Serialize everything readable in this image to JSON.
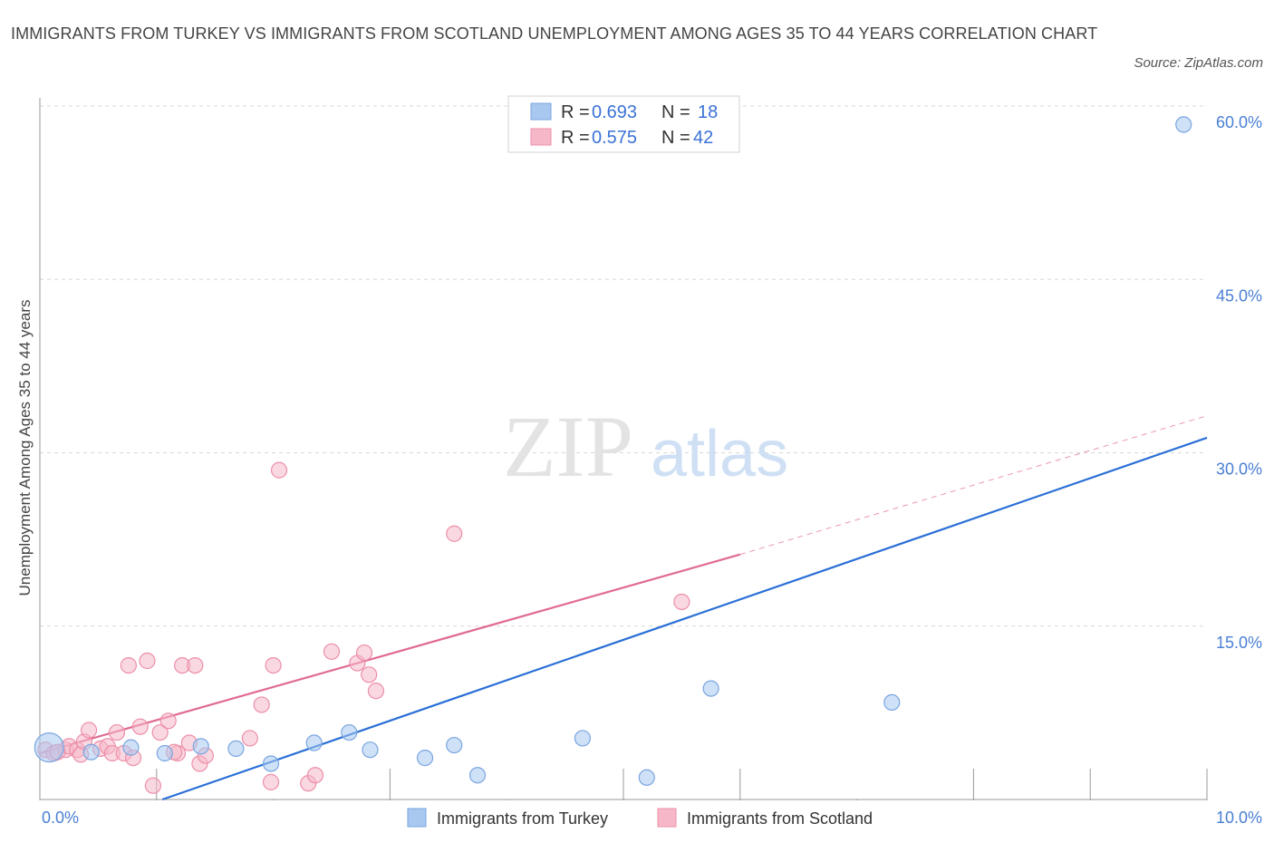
{
  "title": "IMMIGRANTS FROM TURKEY VS IMMIGRANTS FROM SCOTLAND UNEMPLOYMENT AMONG AGES 35 TO 44 YEARS CORRELATION CHART",
  "source": "Source: ZipAtlas.com",
  "watermark": {
    "zip": "ZIP",
    "atlas": "atlas"
  },
  "legend": {
    "turkey": {
      "r_label": "R =",
      "r_value": "0.693",
      "n_label": "N =",
      "n_value": "18"
    },
    "scotland": {
      "r_label": "R =",
      "r_value": "0.575",
      "n_label": "N =",
      "n_value": "42"
    }
  },
  "bottom_legend": {
    "turkey": "Immigrants from Turkey",
    "scotland": "Immigrants from Scotland"
  },
  "chart_data": {
    "type": "scatter",
    "ylabel": "Unemployment Among Ages 35 to 44 years",
    "xlim": [
      0,
      10
    ],
    "ylim": [
      0,
      60
    ],
    "y_ticks": [
      {
        "value": 60,
        "label": "60.0%"
      },
      {
        "value": 45,
        "label": "45.0%"
      },
      {
        "value": 30,
        "label": "30.0%"
      },
      {
        "value": 15,
        "label": "15.0%"
      }
    ],
    "x_tick_labels": {
      "min": "0.0%",
      "max": "10.0%"
    },
    "colors": {
      "turkey_fill": "#a8c8f0",
      "turkey_stroke": "#7aa5e0",
      "turkey_line": "#2a6fd6",
      "scotland_fill": "#f6b8c8",
      "scotland_stroke": "#ec8fa8",
      "scotland_line": "#e06a92",
      "grid": "#d8d8d8",
      "tick_label": "#4a7fd4"
    },
    "series": [
      {
        "name": "Immigrants from Turkey",
        "points": [
          [
            0.08,
            4.5,
            "large"
          ],
          [
            0.44,
            4.1
          ],
          [
            0.78,
            4.5
          ],
          [
            1.07,
            4.0
          ],
          [
            1.38,
            4.6
          ],
          [
            1.68,
            4.4
          ],
          [
            1.98,
            3.1
          ],
          [
            2.35,
            4.9
          ],
          [
            2.65,
            5.8
          ],
          [
            2.83,
            4.3
          ],
          [
            3.3,
            3.6
          ],
          [
            3.55,
            4.7
          ],
          [
            3.75,
            2.1
          ],
          [
            4.65,
            5.3
          ],
          [
            5.2,
            1.9
          ],
          [
            5.75,
            9.6
          ],
          [
            7.3,
            8.4
          ],
          [
            9.8,
            58.4
          ]
        ],
        "trend": {
          "x0": 1.05,
          "y0": 0.0,
          "x1": 10.0,
          "y1": 31.3
        }
      },
      {
        "name": "Immigrants from Scotland",
        "points": [
          [
            0.05,
            4.3
          ],
          [
            0.12,
            4.0
          ],
          [
            0.22,
            4.3
          ],
          [
            0.25,
            4.6
          ],
          [
            0.32,
            4.3
          ],
          [
            0.35,
            3.9
          ],
          [
            0.38,
            5.0
          ],
          [
            0.42,
            6.0
          ],
          [
            0.52,
            4.4
          ],
          [
            0.58,
            4.6
          ],
          [
            0.62,
            4.0
          ],
          [
            0.66,
            5.8
          ],
          [
            0.72,
            4.0
          ],
          [
            0.76,
            11.6
          ],
          [
            0.8,
            3.6
          ],
          [
            0.86,
            6.3
          ],
          [
            0.92,
            12.0
          ],
          [
            0.97,
            1.2
          ],
          [
            1.03,
            5.8
          ],
          [
            1.1,
            6.8
          ],
          [
            1.18,
            4.0
          ],
          [
            1.22,
            11.6
          ],
          [
            1.28,
            4.9
          ],
          [
            1.33,
            11.6
          ],
          [
            1.37,
            3.1
          ],
          [
            1.42,
            3.8
          ],
          [
            1.8,
            5.3
          ],
          [
            1.9,
            8.2
          ],
          [
            1.98,
            1.5
          ],
          [
            2.0,
            11.6
          ],
          [
            2.05,
            28.5
          ],
          [
            2.3,
            1.4
          ],
          [
            2.36,
            2.1
          ],
          [
            2.5,
            12.8
          ],
          [
            2.72,
            11.8
          ],
          [
            2.78,
            12.7
          ],
          [
            2.82,
            10.8
          ],
          [
            2.88,
            9.4
          ],
          [
            3.55,
            23.0
          ],
          [
            5.5,
            17.1
          ],
          [
            0.15,
            4.1
          ],
          [
            1.15,
            4.1
          ]
        ],
        "trend": {
          "x0": 0.0,
          "y0": 4.0,
          "x1": 6.0,
          "y1": 21.2
        },
        "trend_extension": {
          "x0": 6.0,
          "y0": 21.2,
          "x1": 10.0,
          "y1": 33.2
        }
      }
    ]
  }
}
